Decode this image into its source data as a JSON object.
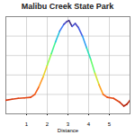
{
  "chart_data": {
    "type": "line",
    "title": "Malibu Creek State Park",
    "x_label": "Distance",
    "x": [
      0,
      0.3,
      0.6,
      0.9,
      1.2,
      1.4,
      1.6,
      1.8,
      2.0,
      2.2,
      2.4,
      2.6,
      2.8,
      2.95,
      3.05,
      3.2,
      3.35,
      3.5,
      3.7,
      3.9,
      4.1,
      4.3,
      4.5,
      4.7,
      4.9,
      5.2,
      5.5,
      5.7,
      5.85,
      6.0
    ],
    "values": [
      140,
      150,
      160,
      165,
      170,
      200,
      280,
      380,
      500,
      620,
      740,
      850,
      920,
      950,
      960,
      900,
      930,
      890,
      800,
      680,
      560,
      420,
      300,
      200,
      170,
      160,
      120,
      80,
      100,
      140
    ],
    "color": "turbo",
    "xlim": [
      0,
      6
    ],
    "xticks": [
      1,
      2,
      3,
      4,
      5
    ],
    "ylim": [
      0,
      1000
    ],
    "yticks": [
      0,
      200,
      400,
      600,
      800,
      1000
    ],
    "grid": true,
    "tick_labels": "x"
  }
}
